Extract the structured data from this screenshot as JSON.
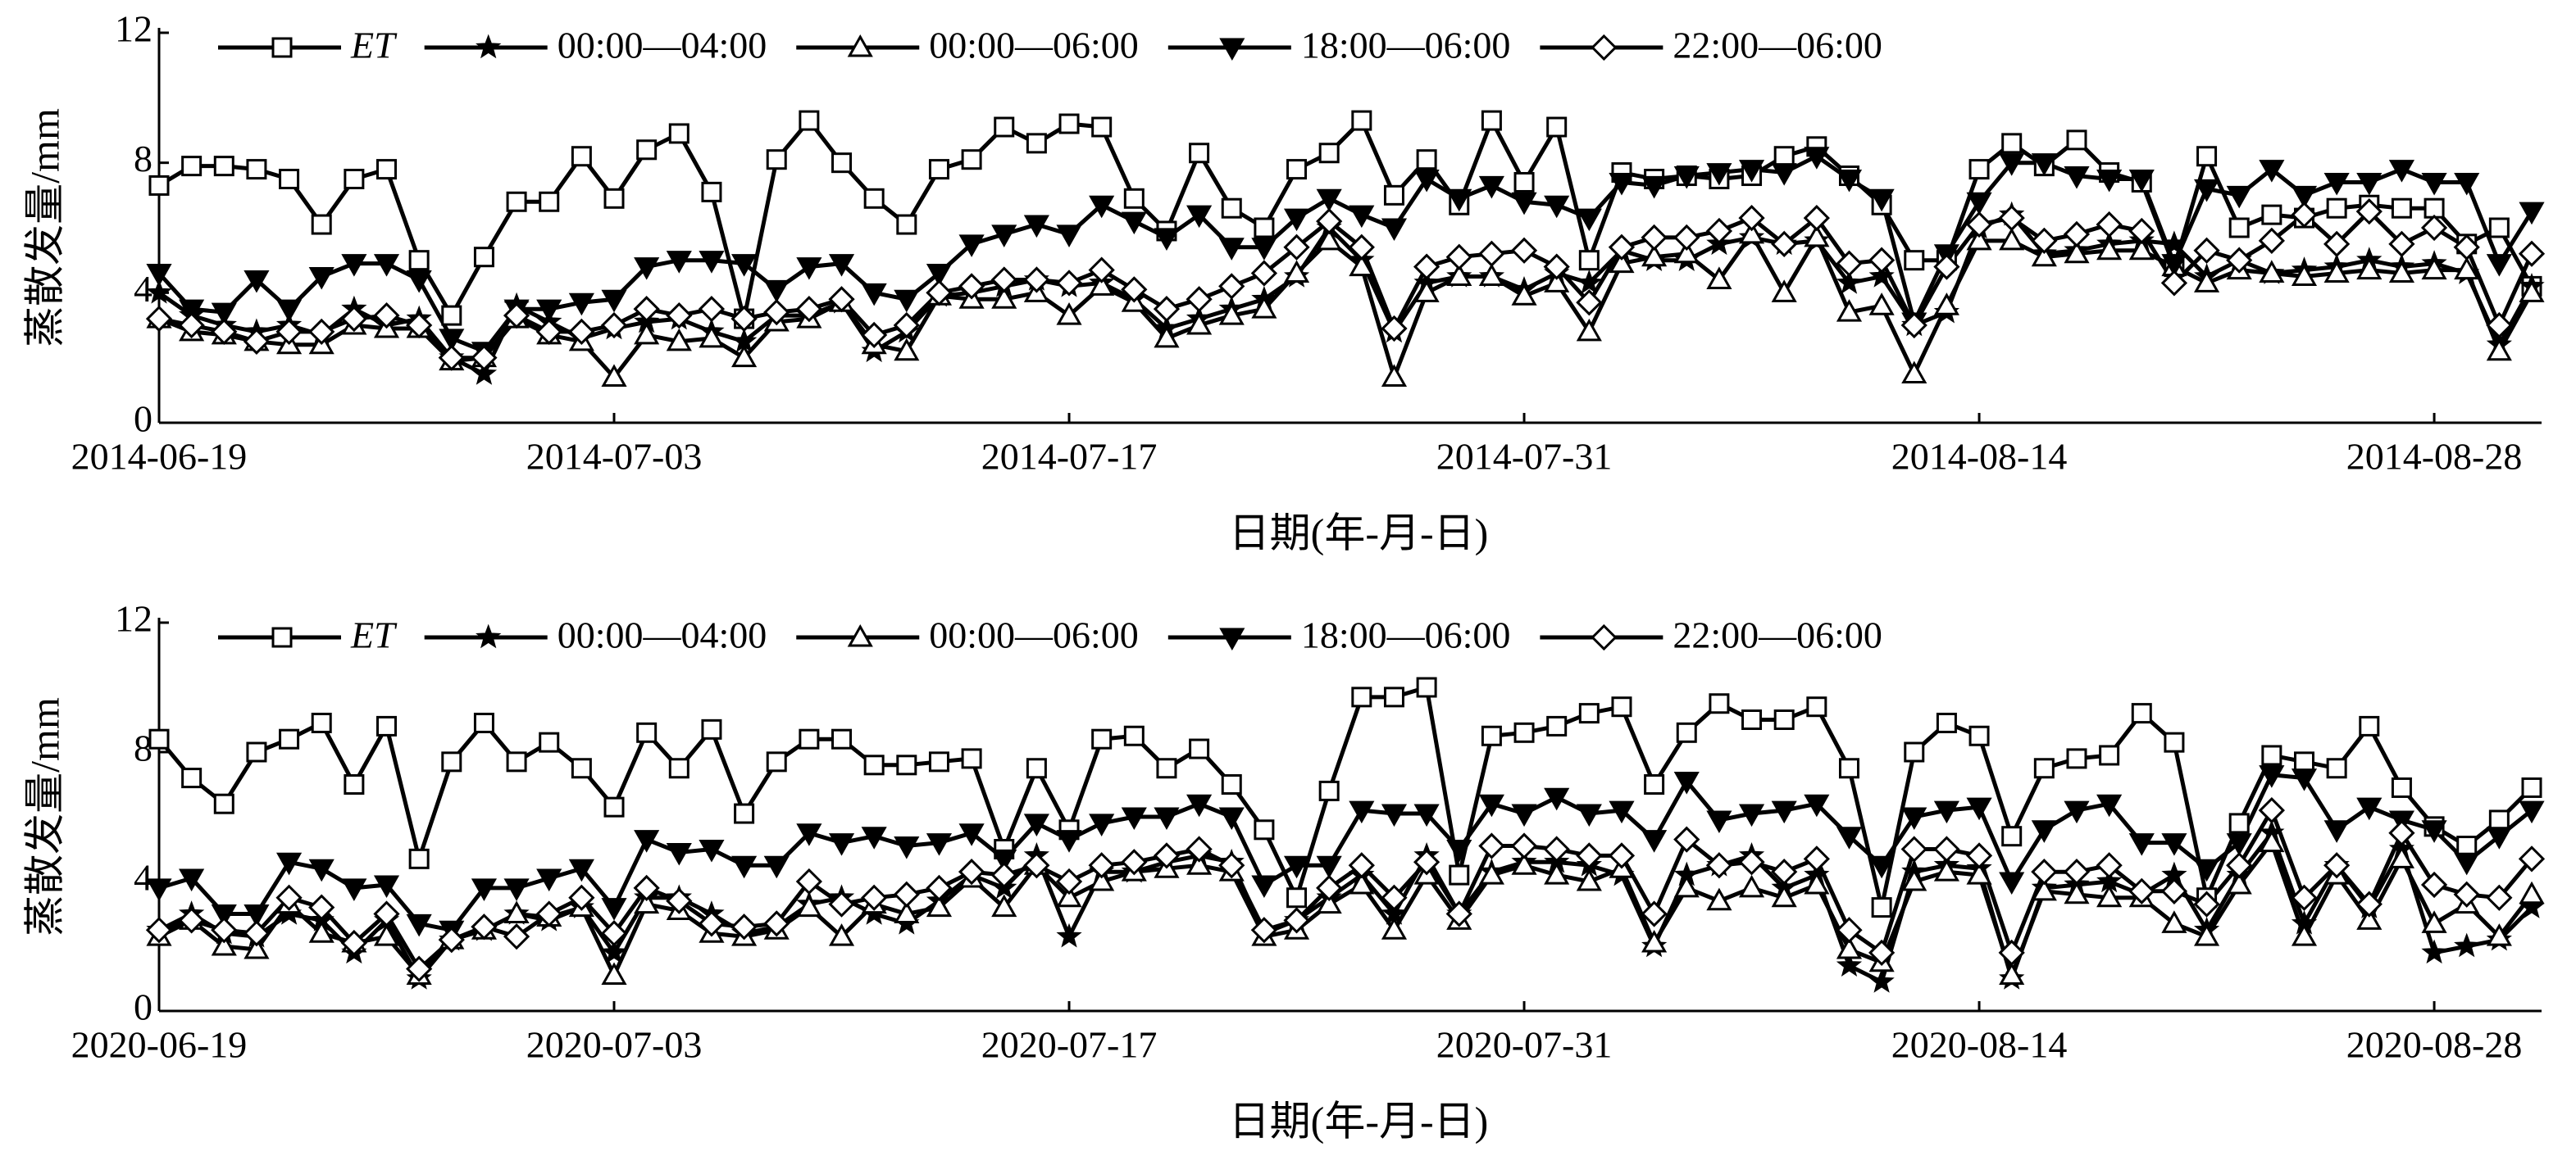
{
  "chart_data": [
    {
      "type": "line",
      "x_label": "日期(年-月-日)",
      "y_label": "蒸散发量/mm",
      "legend": "top",
      "x": [
        "2014-06-19",
        "2014-06-20",
        "2014-06-21",
        "2014-06-22",
        "2014-06-23",
        "2014-06-24",
        "2014-06-25",
        "2014-06-26",
        "2014-06-27",
        "2014-06-28",
        "2014-06-29",
        "2014-06-30",
        "2014-07-01",
        "2014-07-02",
        "2014-07-03",
        "2014-07-04",
        "2014-07-05",
        "2014-07-06",
        "2014-07-07",
        "2014-07-08",
        "2014-07-09",
        "2014-07-10",
        "2014-07-11",
        "2014-07-12",
        "2014-07-13",
        "2014-07-14",
        "2014-07-15",
        "2014-07-16",
        "2014-07-17",
        "2014-07-18",
        "2014-07-19",
        "2014-07-20",
        "2014-07-21",
        "2014-07-22",
        "2014-07-23",
        "2014-07-24",
        "2014-07-25",
        "2014-07-26",
        "2014-07-27",
        "2014-07-28",
        "2014-07-29",
        "2014-07-30",
        "2014-07-31",
        "2014-08-01",
        "2014-08-02",
        "2014-08-03",
        "2014-08-04",
        "2014-08-05",
        "2014-08-06",
        "2014-08-07",
        "2014-08-08",
        "2014-08-09",
        "2014-08-10",
        "2014-08-11",
        "2014-08-12",
        "2014-08-13",
        "2014-08-14",
        "2014-08-15",
        "2014-08-16",
        "2014-08-17",
        "2014-08-18",
        "2014-08-19",
        "2014-08-20",
        "2014-08-21",
        "2014-08-22",
        "2014-08-23",
        "2014-08-24",
        "2014-08-25",
        "2014-08-26",
        "2014-08-27",
        "2014-08-28",
        "2014-08-29",
        "2014-08-30",
        "2014-08-31"
      ],
      "xlim": [
        "2014-06-19",
        "2014-08-31"
      ],
      "xticks": [
        "2014-06-19",
        "2014-07-03",
        "2014-07-17",
        "2014-07-31",
        "2014-08-14",
        "2014-08-28"
      ],
      "ylim": [
        0,
        12
      ],
      "yticks": [
        0,
        4,
        8,
        12
      ],
      "series": [
        {
          "name": "ET",
          "color": "#000000",
          "marker": "square",
          "values": [
            7.3,
            7.9,
            7.9,
            7.8,
            7.5,
            6.1,
            7.5,
            7.8,
            5.0,
            3.3,
            5.1,
            6.8,
            6.8,
            8.2,
            6.9,
            8.4,
            8.9,
            7.1,
            3.2,
            8.1,
            9.3,
            8.0,
            6.9,
            6.1,
            7.8,
            8.1,
            9.1,
            8.6,
            9.2,
            9.1,
            6.9,
            5.9,
            8.3,
            6.6,
            6.0,
            7.8,
            8.3,
            9.3,
            7.0,
            8.1,
            6.7,
            9.3,
            7.4,
            9.1,
            5.0,
            7.7,
            7.5,
            7.6,
            7.5,
            7.6,
            8.2,
            8.5,
            7.6,
            6.7,
            5.0,
            5.0,
            7.8,
            8.6,
            7.9,
            8.7,
            7.7,
            7.4,
            4.8,
            8.2,
            6.0,
            6.4,
            6.3,
            6.6,
            6.7,
            6.6,
            6.6,
            5.5,
            6.0,
            4.2
          ]
        },
        {
          "name": "00:00—04:00",
          "color": "#000000",
          "marker": "star",
          "values": [
            4.0,
            3.3,
            3.0,
            2.8,
            3.0,
            2.7,
            3.5,
            3.0,
            3.2,
            2.0,
            1.5,
            3.6,
            3.1,
            2.6,
            2.9,
            3.1,
            3.2,
            2.8,
            2.5,
            3.3,
            3.3,
            3.7,
            2.2,
            2.8,
            3.9,
            4.0,
            4.2,
            4.4,
            4.2,
            4.3,
            3.8,
            2.9,
            3.2,
            3.5,
            3.8,
            4.5,
            6.0,
            5.0,
            2.8,
            4.3,
            4.5,
            4.5,
            4.1,
            4.6,
            4.3,
            5.3,
            5.0,
            5.0,
            5.5,
            5.7,
            5.5,
            5.6,
            4.3,
            4.5,
            3.0,
            3.4,
            6.0,
            6.4,
            5.2,
            5.3,
            5.5,
            5.6,
            5.5,
            4.5,
            5.0,
            4.6,
            4.7,
            4.8,
            5.0,
            4.8,
            4.9,
            4.6,
            2.4,
            4.2
          ]
        },
        {
          "name": "00:00—06:00",
          "color": "#000000",
          "marker": "triangle",
          "values": [
            3.2,
            2.8,
            2.7,
            2.5,
            2.4,
            2.4,
            3.0,
            2.9,
            2.9,
            1.9,
            2.0,
            3.2,
            2.7,
            2.5,
            1.4,
            2.7,
            2.5,
            2.6,
            2.0,
            3.1,
            3.2,
            3.7,
            2.4,
            2.2,
            3.9,
            3.8,
            3.8,
            4.0,
            3.3,
            4.2,
            3.7,
            2.6,
            3.0,
            3.3,
            3.5,
            4.6,
            5.6,
            4.8,
            1.4,
            4.0,
            4.5,
            4.5,
            3.9,
            4.3,
            2.8,
            4.9,
            5.1,
            5.2,
            4.4,
            5.8,
            4.0,
            5.7,
            3.4,
            3.6,
            1.5,
            3.6,
            5.6,
            5.6,
            5.1,
            5.2,
            5.3,
            5.3,
            4.8,
            4.3,
            4.7,
            4.6,
            4.5,
            4.6,
            4.7,
            4.6,
            4.7,
            4.7,
            2.2,
            4.0
          ]
        },
        {
          "name": "18:00—06:00",
          "color": "#000000",
          "marker": "triangle-down",
          "values": [
            4.6,
            3.5,
            3.4,
            4.4,
            3.5,
            4.5,
            4.9,
            4.9,
            4.4,
            2.6,
            2.2,
            3.5,
            3.5,
            3.7,
            3.8,
            4.8,
            5.0,
            5.0,
            4.9,
            4.1,
            4.8,
            4.9,
            4.0,
            3.8,
            4.6,
            5.5,
            5.8,
            6.1,
            5.8,
            6.7,
            6.2,
            5.7,
            6.4,
            5.4,
            5.4,
            6.3,
            6.9,
            6.4,
            6.0,
            7.5,
            6.9,
            7.3,
            6.8,
            6.7,
            6.3,
            7.4,
            7.3,
            7.6,
            7.7,
            7.8,
            7.7,
            8.2,
            7.5,
            6.9,
            3.1,
            5.2,
            6.8,
            8.0,
            8.0,
            7.6,
            7.5,
            7.5,
            4.9,
            7.2,
            7.0,
            7.8,
            7.0,
            7.4,
            7.4,
            7.8,
            7.4,
            7.4,
            4.9,
            6.5
          ]
        },
        {
          "name": "22:00—06:00",
          "color": "#000000",
          "marker": "diamond",
          "values": [
            3.2,
            3.0,
            2.8,
            2.5,
            2.8,
            2.8,
            3.2,
            3.3,
            3.0,
            2.0,
            2.0,
            3.3,
            2.8,
            2.8,
            3.0,
            3.5,
            3.3,
            3.5,
            3.2,
            3.4,
            3.5,
            3.8,
            2.7,
            3.0,
            4.0,
            4.2,
            4.4,
            4.4,
            4.3,
            4.7,
            4.1,
            3.5,
            3.8,
            4.2,
            4.6,
            5.4,
            6.2,
            5.4,
            2.9,
            4.8,
            5.1,
            5.2,
            5.3,
            4.8,
            3.7,
            5.4,
            5.7,
            5.7,
            5.9,
            6.3,
            5.5,
            6.3,
            4.9,
            5.0,
            3.0,
            4.8,
            6.1,
            6.3,
            5.6,
            5.8,
            6.1,
            5.9,
            4.3,
            5.3,
            5.0,
            5.6,
            6.4,
            5.5,
            6.5,
            5.5,
            6.0,
            5.4,
            3.0,
            5.2
          ]
        }
      ]
    },
    {
      "type": "line",
      "x_label": "日期(年-月-日)",
      "y_label": "蒸散发量/mm",
      "legend": "top",
      "x": [
        "2020-06-19",
        "2020-06-20",
        "2020-06-21",
        "2020-06-22",
        "2020-06-23",
        "2020-06-24",
        "2020-06-25",
        "2020-06-26",
        "2020-06-27",
        "2020-06-28",
        "2020-06-29",
        "2020-06-30",
        "2020-07-01",
        "2020-07-02",
        "2020-07-03",
        "2020-07-04",
        "2020-07-05",
        "2020-07-06",
        "2020-07-07",
        "2020-07-08",
        "2020-07-09",
        "2020-07-10",
        "2020-07-11",
        "2020-07-12",
        "2020-07-13",
        "2020-07-14",
        "2020-07-15",
        "2020-07-16",
        "2020-07-17",
        "2020-07-18",
        "2020-07-19",
        "2020-07-20",
        "2020-07-21",
        "2020-07-22",
        "2020-07-23",
        "2020-07-24",
        "2020-07-25",
        "2020-07-26",
        "2020-07-27",
        "2020-07-28",
        "2020-07-29",
        "2020-07-30",
        "2020-07-31",
        "2020-08-01",
        "2020-08-02",
        "2020-08-03",
        "2020-08-04",
        "2020-08-05",
        "2020-08-06",
        "2020-08-07",
        "2020-08-08",
        "2020-08-09",
        "2020-08-10",
        "2020-08-11",
        "2020-08-12",
        "2020-08-13",
        "2020-08-14",
        "2020-08-15",
        "2020-08-16",
        "2020-08-17",
        "2020-08-18",
        "2020-08-19",
        "2020-08-20",
        "2020-08-21",
        "2020-08-22",
        "2020-08-23",
        "2020-08-24",
        "2020-08-25",
        "2020-08-26",
        "2020-08-27",
        "2020-08-28",
        "2020-08-29",
        "2020-08-30",
        "2020-08-31"
      ],
      "xlim": [
        "2020-06-19",
        "2020-08-31"
      ],
      "xticks": [
        "2020-06-19",
        "2020-07-03",
        "2020-07-17",
        "2020-07-31",
        "2020-08-14",
        "2020-08-28"
      ],
      "ylim": [
        0,
        12
      ],
      "yticks": [
        0,
        4,
        8,
        12
      ],
      "series": [
        {
          "name": "ET",
          "color": "#000000",
          "marker": "square",
          "values": [
            8.4,
            7.2,
            6.4,
            8.0,
            8.4,
            8.9,
            7.0,
            8.8,
            4.7,
            7.7,
            8.9,
            7.7,
            8.3,
            7.5,
            6.3,
            8.6,
            7.5,
            8.7,
            6.1,
            7.7,
            8.4,
            8.4,
            7.6,
            7.6,
            7.7,
            7.8,
            5.0,
            7.5,
            5.6,
            8.4,
            8.5,
            7.5,
            8.1,
            7.0,
            5.6,
            3.5,
            6.8,
            9.7,
            9.7,
            10.0,
            4.2,
            8.5,
            8.6,
            8.8,
            9.2,
            9.4,
            7.0,
            8.6,
            9.5,
            9.0,
            9.0,
            9.4,
            7.5,
            3.2,
            8.0,
            8.9,
            8.5,
            5.4,
            7.5,
            7.8,
            7.9,
            9.2,
            8.3,
            3.5,
            5.8,
            7.9,
            7.7,
            7.5,
            8.8,
            6.9,
            5.7,
            5.1,
            5.9,
            6.9
          ]
        },
        {
          "name": "00:00—04:00",
          "color": "#000000",
          "marker": "star",
          "values": [
            2.5,
            3.0,
            2.4,
            2.3,
            3.0,
            2.8,
            1.8,
            2.8,
            1.0,
            2.2,
            2.5,
            3.0,
            2.8,
            3.2,
            1.8,
            3.5,
            3.5,
            3.0,
            2.4,
            2.6,
            3.3,
            3.5,
            3.0,
            2.7,
            3.4,
            4.2,
            3.8,
            4.8,
            2.3,
            4.3,
            4.3,
            4.6,
            4.8,
            4.6,
            2.4,
            2.8,
            3.5,
            4.2,
            3.0,
            4.8,
            3.0,
            4.3,
            4.6,
            4.6,
            4.5,
            4.2,
            2.0,
            4.2,
            4.5,
            4.8,
            3.8,
            4.2,
            1.4,
            0.9,
            4.3,
            4.5,
            4.4,
            1.0,
            3.8,
            3.9,
            4.0,
            3.6,
            4.2,
            2.5,
            4.2,
            5.5,
            2.7,
            4.5,
            3.2,
            5.0,
            1.8,
            2.0,
            2.2,
            3.2
          ]
        },
        {
          "name": "00:00—06:00",
          "color": "#000000",
          "marker": "triangle",
          "values": [
            2.3,
            2.8,
            2.0,
            1.9,
            3.3,
            2.4,
            2.1,
            2.3,
            1.1,
            2.2,
            2.5,
            3.0,
            2.9,
            3.2,
            1.1,
            3.3,
            3.1,
            2.4,
            2.3,
            2.5,
            3.2,
            2.3,
            3.3,
            3.0,
            3.2,
            4.1,
            3.2,
            4.5,
            3.5,
            4.0,
            4.3,
            4.4,
            4.5,
            4.3,
            2.3,
            2.5,
            3.3,
            3.9,
            2.5,
            4.2,
            2.8,
            4.2,
            4.5,
            4.2,
            4.0,
            4.4,
            2.1,
            3.8,
            3.4,
            3.8,
            3.5,
            3.9,
            1.9,
            1.5,
            4.0,
            4.3,
            4.2,
            1.1,
            3.7,
            3.6,
            3.5,
            3.5,
            2.7,
            2.3,
            3.9,
            5.2,
            2.3,
            4.2,
            2.8,
            4.7,
            2.7,
            3.3,
            2.3,
            3.6
          ]
        },
        {
          "name": "18:00—06:00",
          "color": "#000000",
          "marker": "triangle-down",
          "values": [
            3.8,
            4.1,
            3.0,
            3.0,
            4.6,
            4.4,
            3.8,
            3.9,
            2.7,
            2.5,
            3.8,
            3.8,
            4.1,
            4.4,
            3.2,
            5.3,
            4.9,
            5.0,
            4.5,
            4.5,
            5.5,
            5.2,
            5.4,
            5.1,
            5.2,
            5.5,
            4.7,
            5.8,
            5.3,
            5.8,
            6.0,
            6.0,
            6.4,
            6.0,
            3.9,
            4.5,
            4.5,
            6.2,
            6.1,
            6.1,
            5.0,
            6.4,
            6.1,
            6.6,
            6.1,
            6.2,
            5.3,
            7.1,
            5.9,
            6.1,
            6.2,
            6.4,
            5.4,
            4.5,
            6.0,
            6.2,
            6.3,
            4.0,
            5.6,
            6.2,
            6.4,
            5.2,
            5.2,
            4.4,
            5.2,
            7.3,
            7.2,
            5.6,
            6.3,
            5.9,
            5.6,
            4.6,
            5.4,
            6.2
          ]
        },
        {
          "name": "22:00—06:00",
          "color": "#000000",
          "marker": "diamond",
          "values": [
            2.5,
            2.8,
            2.5,
            2.4,
            3.5,
            3.2,
            2.1,
            3.0,
            1.3,
            2.2,
            2.6,
            2.3,
            3.0,
            3.5,
            2.4,
            3.8,
            3.4,
            2.7,
            2.6,
            2.7,
            4.0,
            3.3,
            3.5,
            3.6,
            3.8,
            4.3,
            4.2,
            4.5,
            4.0,
            4.5,
            4.6,
            4.8,
            5.0,
            4.5,
            2.5,
            2.8,
            3.8,
            4.5,
            3.5,
            4.6,
            3.0,
            5.1,
            5.1,
            5.0,
            4.8,
            4.8,
            3.0,
            5.3,
            4.5,
            4.6,
            4.3,
            4.7,
            2.5,
            1.8,
            5.0,
            5.0,
            4.8,
            1.8,
            4.3,
            4.3,
            4.5,
            3.7,
            3.7,
            3.3,
            4.5,
            6.2,
            3.5,
            4.5,
            3.3,
            5.5,
            3.9,
            3.6,
            3.5,
            4.7
          ]
        }
      ]
    }
  ]
}
